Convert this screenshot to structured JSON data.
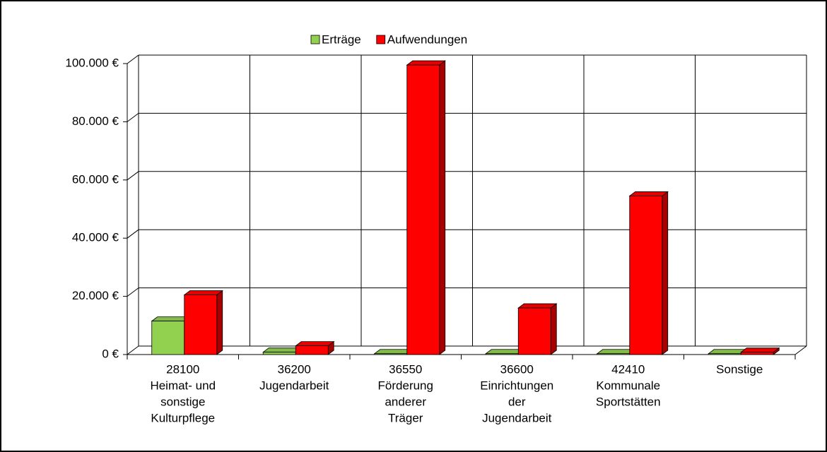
{
  "chart_data": {
    "type": "bar3d",
    "categories": [
      [
        "28100",
        "Heimat- und",
        "sonstige",
        "Kulturpflege"
      ],
      [
        "36200",
        "Jugendarbeit"
      ],
      [
        "36550",
        "Förderung",
        "anderer",
        "Träger"
      ],
      [
        "36600",
        "Einrichtungen",
        "der",
        "Jugendarbeit"
      ],
      [
        "42410",
        "Kommunale",
        "Sportstätten"
      ],
      [
        "Sonstige"
      ]
    ],
    "series": [
      {
        "name": "Erträge",
        "color": "#92d050",
        "values": [
          11500,
          800,
          300,
          300,
          300,
          300
        ]
      },
      {
        "name": "Aufwendungen",
        "color": "#ff0000",
        "values": [
          20500,
          3000,
          99500,
          16000,
          54500,
          800
        ]
      }
    ],
    "ylim": [
      0,
      100000
    ],
    "yticks": [
      {
        "value": 0,
        "label": "0 €"
      },
      {
        "value": 20000,
        "label": "20.000 €"
      },
      {
        "value": 40000,
        "label": "40.000 €"
      },
      {
        "value": 60000,
        "label": "60.000 €"
      },
      {
        "value": 80000,
        "label": "80.000 €"
      },
      {
        "value": 100000,
        "label": "100.000 €"
      }
    ],
    "grid": true,
    "legend": "top"
  }
}
